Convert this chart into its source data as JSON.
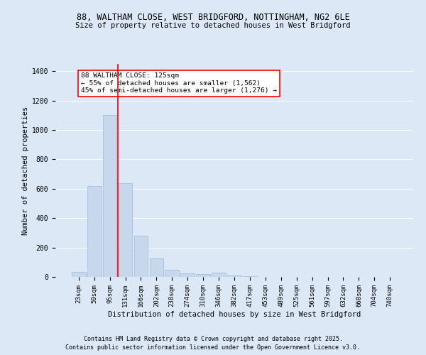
{
  "title_line1": "88, WALTHAM CLOSE, WEST BRIDGFORD, NOTTINGHAM, NG2 6LE",
  "title_line2": "Size of property relative to detached houses in West Bridgford",
  "xlabel": "Distribution of detached houses by size in West Bridgford",
  "ylabel": "Number of detached properties",
  "categories": [
    "23sqm",
    "59sqm",
    "95sqm",
    "131sqm",
    "166sqm",
    "202sqm",
    "238sqm",
    "274sqm",
    "310sqm",
    "346sqm",
    "382sqm",
    "417sqm",
    "453sqm",
    "489sqm",
    "525sqm",
    "561sqm",
    "597sqm",
    "632sqm",
    "668sqm",
    "704sqm",
    "740sqm"
  ],
  "values": [
    35,
    620,
    1100,
    640,
    280,
    125,
    50,
    25,
    20,
    30,
    8,
    3,
    2,
    1,
    1,
    0,
    0,
    0,
    0,
    0,
    0
  ],
  "bar_color": "#c8d8ec",
  "bar_edge_color": "#a0b8d8",
  "vline_color": "red",
  "vline_linewidth": 1.2,
  "vline_index": 2.5,
  "annotation_text": "88 WALTHAM CLOSE: 125sqm\n← 55% of detached houses are smaller (1,562)\n45% of semi-detached houses are larger (1,276) →",
  "annotation_box_facecolor": "white",
  "annotation_box_edgecolor": "red",
  "ylim": [
    0,
    1450
  ],
  "yticks": [
    0,
    200,
    400,
    600,
    800,
    1000,
    1200,
    1400
  ],
  "background_color": "#dce8f5",
  "grid_color": "#ffffff",
  "footer_line1": "Contains HM Land Registry data © Crown copyright and database right 2025.",
  "footer_line2": "Contains public sector information licensed under the Open Government Licence v3.0."
}
